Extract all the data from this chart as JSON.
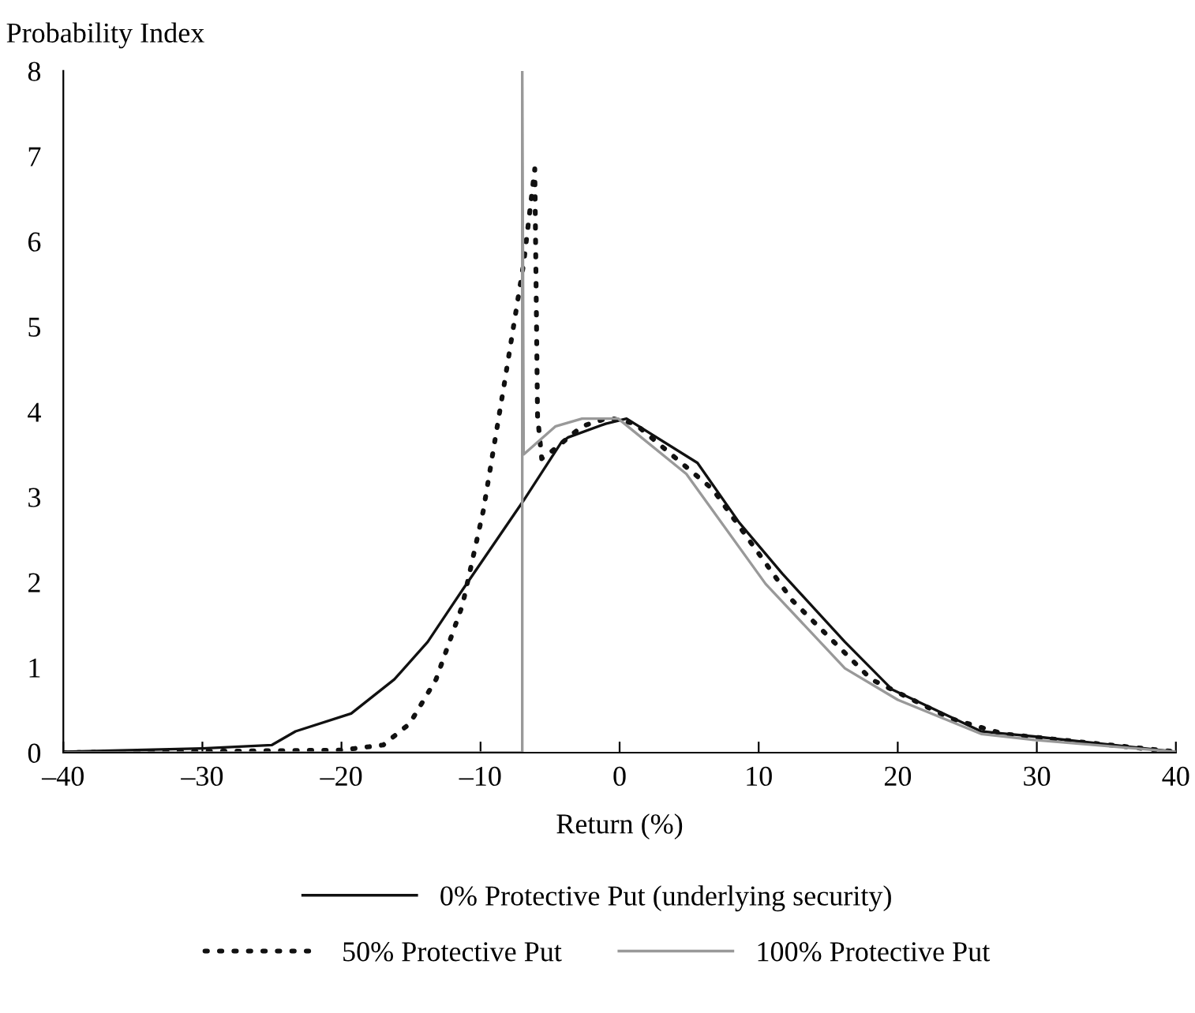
{
  "chart_data": {
    "type": "line",
    "xlabel": "Return (%)",
    "ylabel": "Probability Index",
    "xlim": [
      -40,
      40
    ],
    "ylim": [
      0,
      8
    ],
    "xticks": [
      {
        "value": -40,
        "label": "–40"
      },
      {
        "value": -30,
        "label": "–30"
      },
      {
        "value": -20,
        "label": "–20"
      },
      {
        "value": -10,
        "label": "–10"
      },
      0,
      10,
      20,
      30,
      40
    ],
    "yticks": [
      0,
      1,
      2,
      3,
      4,
      5,
      6,
      7,
      8
    ],
    "grid": false,
    "legend": "bottom",
    "marker": "none",
    "series": [
      {
        "name": "0% Protective Put (underlying security)",
        "color": "#111111",
        "line_style": "solid",
        "x": [
          -40,
          -30,
          -25,
          -23.3,
          -19.3,
          -16.2,
          -13.8,
          -11.3,
          -6.9,
          -4.2,
          -3.7,
          -1.0,
          0.5,
          5.6,
          8.6,
          11.7,
          16.2,
          19.6,
          26,
          29.8,
          40
        ],
        "values": [
          0.01,
          0.05,
          0.09,
          0.25,
          0.46,
          0.86,
          1.3,
          1.91,
          2.96,
          3.64,
          3.7,
          3.86,
          3.92,
          3.4,
          2.7,
          2.1,
          1.3,
          0.74,
          0.25,
          0.19,
          0.01
        ]
      },
      {
        "name": "50% Protective Put",
        "color": "#111111",
        "line_style": "dotted",
        "x": [
          -40,
          -20,
          -17,
          -15.1,
          -13.2,
          -11.3,
          -9.8,
          -8.3,
          -6.9,
          -6.1,
          -5.9,
          -5.6,
          -5,
          -2.7,
          -0.8,
          1.1,
          6.7,
          12.4,
          18.1,
          23.8,
          27.6,
          40
        ],
        "values": [
          0.0,
          0.03,
          0.09,
          0.34,
          0.86,
          1.73,
          2.84,
          4.32,
          5.74,
          6.85,
          3.95,
          3.45,
          3.52,
          3.83,
          3.93,
          3.86,
          3.09,
          1.79,
          0.86,
          0.4,
          0.22,
          0.01
        ]
      },
      {
        "name": "100% Protective Put",
        "color": "#999999",
        "line_style": "solid",
        "x": [
          -40,
          -7,
          -7,
          -6.9,
          -4.6,
          -2.7,
          -0.1,
          4.8,
          10.5,
          16.2,
          20,
          26,
          29.8,
          40
        ],
        "values": [
          0,
          0,
          8,
          3.5,
          3.83,
          3.92,
          3.92,
          3.27,
          1.98,
          0.99,
          0.62,
          0.22,
          0.15,
          0.01
        ]
      }
    ]
  }
}
